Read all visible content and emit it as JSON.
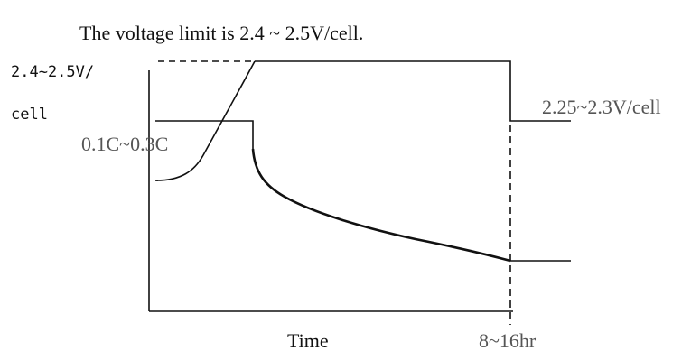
{
  "title": "The voltage limit is 2.4 ~ 2.5V/cell.",
  "y_label": {
    "line1": "2.4~2.5V/",
    "line2": "cell"
  },
  "labels": {
    "current": "0.1C~0.3C",
    "float_voltage": "2.25~2.3V/cell",
    "x_axis": "Time",
    "duration": "8~16hr"
  },
  "colors": {
    "ink": "#111111",
    "grey_label": "#555555",
    "background": "#ffffff"
  }
}
